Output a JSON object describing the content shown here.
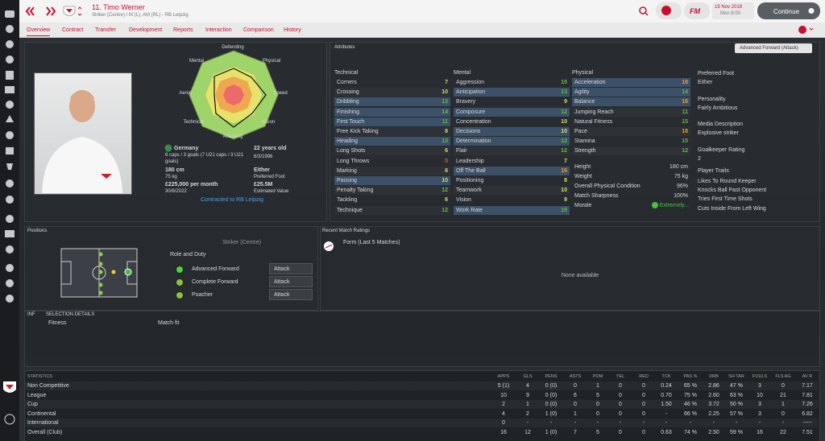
{
  "header": {
    "name": "11. Timo Werner",
    "subtitle": "Striker (Centre) / M (L), AM (RL) - RB Leipzig",
    "date": "19 Nov 2018",
    "time": "Mon 8:00",
    "continue": "Continue"
  },
  "tabs": [
    "Overview",
    "Contract",
    "Transfer",
    "Development",
    "Reports",
    "Interaction",
    "Comparison",
    "History"
  ],
  "radar": {
    "labels": [
      "Defending",
      "Physical",
      "Speed",
      "Vision",
      "Attacking",
      "Technical",
      "Aerial",
      "Mental"
    ]
  },
  "profile": {
    "nation": "Germany",
    "caps": "6 caps / 3 goals (7 U21 caps / 3 U21 goals)",
    "age": "22 years old",
    "dob": "6/3/1996",
    "height": "180 cm",
    "weight": "75 kg",
    "foot": "Either",
    "foot_label": "Preferred Foot",
    "wage": "£225,000 per month",
    "expiry": "30/6/2022",
    "value": "£25.5M",
    "value_label": "Estimated Value",
    "contract": "Contracted to RB Leipzig"
  },
  "attributes": {
    "title": "Attributes",
    "view": "Advanced Forward (Attack)",
    "columns": [
      {
        "heading": "Technical",
        "items": [
          {
            "name": "Corners",
            "value": 7,
            "key": false
          },
          {
            "name": "Crossing",
            "value": 10,
            "key": false
          },
          {
            "name": "Dribbling",
            "value": 13,
            "key": true
          },
          {
            "name": "Finishing",
            "value": 14,
            "key": true
          },
          {
            "name": "First Touch",
            "value": 11,
            "key": true
          },
          {
            "name": "Free Kick Taking",
            "value": 8,
            "key": false
          },
          {
            "name": "Heading",
            "value": 13,
            "key": true
          },
          {
            "name": "Long Shots",
            "value": 6,
            "key": false
          },
          {
            "name": "Long Throws",
            "value": 5,
            "key": false
          },
          {
            "name": "Marking",
            "value": 6,
            "key": false
          },
          {
            "name": "Passing",
            "value": 10,
            "key": true
          },
          {
            "name": "Penalty Taking",
            "value": 12,
            "key": false
          },
          {
            "name": "Tackling",
            "value": 6,
            "key": false
          },
          {
            "name": "Technique",
            "value": 12,
            "key": false
          }
        ]
      },
      {
        "heading": "Mental",
        "items": [
          {
            "name": "Aggression",
            "value": 15,
            "key": false
          },
          {
            "name": "Anticipation",
            "value": 13,
            "key": true
          },
          {
            "name": "Bravery",
            "value": 9,
            "key": false
          },
          {
            "name": "Composure",
            "value": 12,
            "key": true
          },
          {
            "name": "Concentration",
            "value": 10,
            "key": false
          },
          {
            "name": "Decisions",
            "value": 10,
            "key": true
          },
          {
            "name": "Determination",
            "value": 12,
            "key": true
          },
          {
            "name": "Flair",
            "value": 12,
            "key": false
          },
          {
            "name": "Leadership",
            "value": 7,
            "key": false
          },
          {
            "name": "Off The Ball",
            "value": 16,
            "key": true
          },
          {
            "name": "Positioning",
            "value": 8,
            "key": false
          },
          {
            "name": "Teamwork",
            "value": 10,
            "key": false
          },
          {
            "name": "Vision",
            "value": 9,
            "key": false
          },
          {
            "name": "Work Rate",
            "value": 15,
            "key": true
          }
        ]
      },
      {
        "heading": "Physical",
        "items": [
          {
            "name": "Acceleration",
            "value": 18,
            "key": true
          },
          {
            "name": "Agility",
            "value": 14,
            "key": true
          },
          {
            "name": "Balance",
            "value": 16,
            "key": true
          },
          {
            "name": "Jumping Reach",
            "value": 11,
            "key": false
          },
          {
            "name": "Natural Fitness",
            "value": 15,
            "key": false
          },
          {
            "name": "Pace",
            "value": 18,
            "key": false
          },
          {
            "name": "Stamina",
            "value": 15,
            "key": false
          },
          {
            "name": "Strength",
            "value": 12,
            "key": false
          }
        ]
      }
    ],
    "condition": [
      {
        "name": "Height",
        "value": "180 cm"
      },
      {
        "name": "Weight",
        "value": "75 kg"
      },
      {
        "name": "Overall Physical Condition",
        "value": "96%"
      },
      {
        "name": "Match Sharpness",
        "value": "100%"
      },
      {
        "name": "Morale",
        "value": "Extremely..."
      }
    ],
    "info": [
      {
        "label": "Preferred Foot",
        "value": "Either"
      },
      {
        "label": "Personality",
        "value": "Fairly Ambitious"
      },
      {
        "label": "Media Description",
        "value": "Explosive striker"
      },
      {
        "label": "Goalkeeper Rating",
        "value": "2"
      }
    ],
    "traits_label": "Player Traits",
    "traits": [
      "Likes To Round Keeper",
      "Knocks Ball Past Opponent",
      "Tries First Time Shots",
      "Cuts Inside From Left Wing"
    ]
  },
  "positions": {
    "title": "Positions",
    "position": "Striker (Centre)",
    "role_label": "Role and Duty",
    "roles": [
      {
        "name": "Advanced Forward",
        "duty": "Attack"
      },
      {
        "name": "Complete Forward",
        "duty": "Attack"
      },
      {
        "name": "Poacher",
        "duty": "Attack"
      }
    ]
  },
  "ratings": {
    "title": "Recent Match Ratings",
    "form": "Form (Last 5 Matches)",
    "empty": "None available"
  },
  "selection": {
    "inf": "INF",
    "title": "SELECTION DETAILS",
    "label": "Fitness",
    "value": "Match fit"
  },
  "statistics": {
    "headers": [
      "STATISTICS",
      "APPS",
      "GLS",
      "PENS",
      "ASTS",
      "POM",
      "YEL",
      "RED",
      "TCK",
      "PAS %",
      "DRB",
      "SH TAR",
      "FOULS",
      "FLS AG",
      "AV R"
    ],
    "rows": [
      [
        "Non Competitive",
        "5 (1)",
        "4",
        "0 (0)",
        "0",
        "1",
        "0",
        "0",
        "0.24",
        "65 %",
        "2.86",
        "47 %",
        "3",
        "0",
        "7.17"
      ],
      [
        "League",
        "10",
        "9",
        "0 (0)",
        "6",
        "5",
        "0",
        "0",
        "0.70",
        "75 %",
        "2.60",
        "63 %",
        "10",
        "21",
        "7.81"
      ],
      [
        "Cup",
        "2",
        "1",
        "0 (0)",
        "0",
        "0",
        "0",
        "0",
        "1.50",
        "46 %",
        "3.72",
        "50 %",
        "3",
        "1",
        "7.26"
      ],
      [
        "Continental",
        "4",
        "2",
        "1 (0)",
        "1",
        "0",
        "0",
        "0",
        "-",
        "66 %",
        "2.25",
        "57 %",
        "3",
        "0",
        "6.82"
      ],
      [
        "International",
        "0",
        "-",
        "-",
        "-",
        "-",
        "-",
        "-",
        "-",
        "-",
        "-",
        "-",
        "-",
        "-",
        "-----"
      ],
      [
        "Overall (Club)",
        "16",
        "12",
        "1 (0)",
        "7",
        "5",
        "0",
        "0",
        "0.63",
        "74 %",
        "2.50",
        "59 %",
        "16",
        "22",
        "7.51"
      ]
    ]
  }
}
